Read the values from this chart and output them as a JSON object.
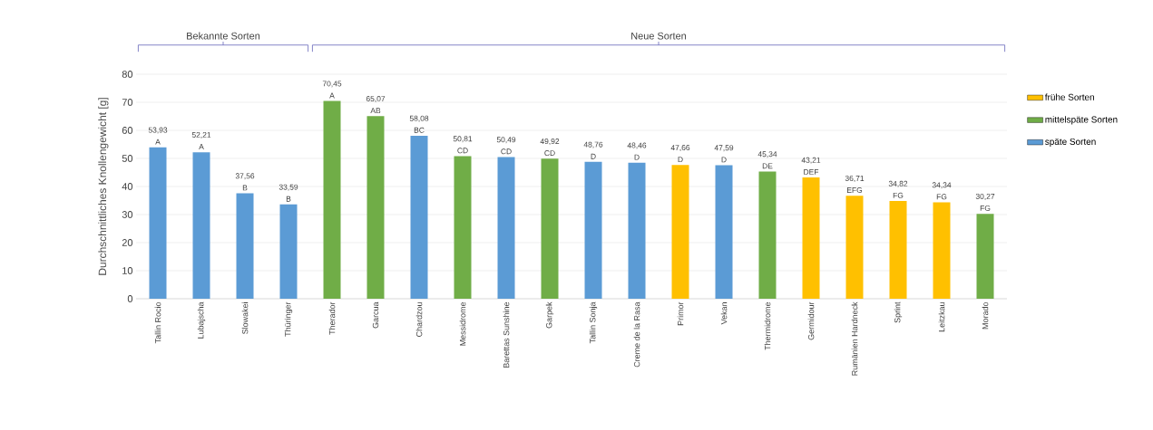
{
  "chart_data": {
    "type": "bar",
    "ylabel": "Durchschnittliches Knollengewicht [g]",
    "categories": [
      "Tallin Rocio",
      "Lubajscha",
      "Slowakei",
      "Thüringer",
      "Therador",
      "Garcua",
      "Chardzou",
      "Messidrome",
      "Barettas Sunshine",
      "Garpek",
      "Tallin Sonja",
      "Creme de la Rasa",
      "Primor",
      "Vekan",
      "Thermidrome",
      "Germidour",
      "Rumänien Hardneck",
      "Sprint",
      "Leitzkau",
      "Morado"
    ],
    "series": [
      {
        "name": "frühe Sorten",
        "color": "#ffc000",
        "values": [
          null,
          null,
          null,
          null,
          null,
          null,
          null,
          null,
          null,
          null,
          null,
          null,
          47.66,
          null,
          null,
          43.21,
          36.71,
          34.82,
          34.34,
          null
        ]
      },
      {
        "name": "mittelspäte Sorten",
        "color": "#70ad47",
        "values": [
          null,
          null,
          null,
          null,
          70.45,
          65.07,
          null,
          50.81,
          null,
          49.92,
          null,
          null,
          null,
          null,
          45.34,
          null,
          null,
          null,
          null,
          30.27
        ]
      },
      {
        "name": "späte Sorten",
        "color": "#5b9bd5",
        "values": [
          53.93,
          52.21,
          37.56,
          33.59,
          null,
          null,
          58.08,
          null,
          50.49,
          null,
          48.76,
          48.46,
          null,
          47.59,
          null,
          null,
          null,
          null,
          null,
          null
        ]
      }
    ],
    "value_labels": [
      "53,93",
      "52,21",
      "37,56",
      "33,59",
      "70,45",
      "65,07",
      "58,08",
      "50,81",
      "50,49",
      "49,92",
      "48,76",
      "48,46",
      "47,66",
      "47,59",
      "45,34",
      "43,21",
      "36,71",
      "34,82",
      "34,34",
      "30,27"
    ],
    "annotations": [
      "Bekannte Sorten",
      "Neue Sorten",
      {
        "text": "A",
        "x": "Tallin Rocio",
        "y": 53.93
      },
      {
        "text": "A",
        "x": "Lubajscha",
        "y": 52.21
      },
      {
        "text": "B",
        "x": "Slowakei",
        "y": 37.56
      },
      {
        "text": "B",
        "x": "Thüringer",
        "y": 33.59
      },
      {
        "text": "A",
        "x": "Therador",
        "y": 70.45
      },
      {
        "text": "AB",
        "x": "Garcua",
        "y": 65.07
      },
      {
        "text": "BC",
        "x": "Chardzou",
        "y": 58.08
      },
      {
        "text": "CD",
        "x": "Messidrome",
        "y": 50.81
      },
      {
        "text": "CD",
        "x": "Barettas Sunshine",
        "y": 50.49
      },
      {
        "text": "CD",
        "x": "Garpek",
        "y": 49.92
      },
      {
        "text": "D",
        "x": "Tallin Sonja",
        "y": 48.76
      },
      {
        "text": "D",
        "x": "Creme de la Rasa",
        "y": 48.46
      },
      {
        "text": "D",
        "x": "Primor",
        "y": 47.66
      },
      {
        "text": "D",
        "x": "Vekan",
        "y": 47.59
      },
      {
        "text": "DE",
        "x": "Thermidrome",
        "y": 45.34
      },
      {
        "text": "DEF",
        "x": "Germidour",
        "y": 43.21
      },
      {
        "text": "EFG",
        "x": "Rumänien Hardneck",
        "y": 36.71
      },
      {
        "text": "FG",
        "x": "Sprint",
        "y": 34.82
      },
      {
        "text": "FG",
        "x": "Leitzkau",
        "y": 34.34
      },
      {
        "text": "FG",
        "x": "Morado",
        "y": 30.27
      }
    ],
    "ylim": [
      0,
      80
    ],
    "yticks": [
      0,
      10,
      20,
      30,
      40,
      50,
      60,
      70,
      80
    ],
    "grid": "y",
    "legend": "right"
  }
}
